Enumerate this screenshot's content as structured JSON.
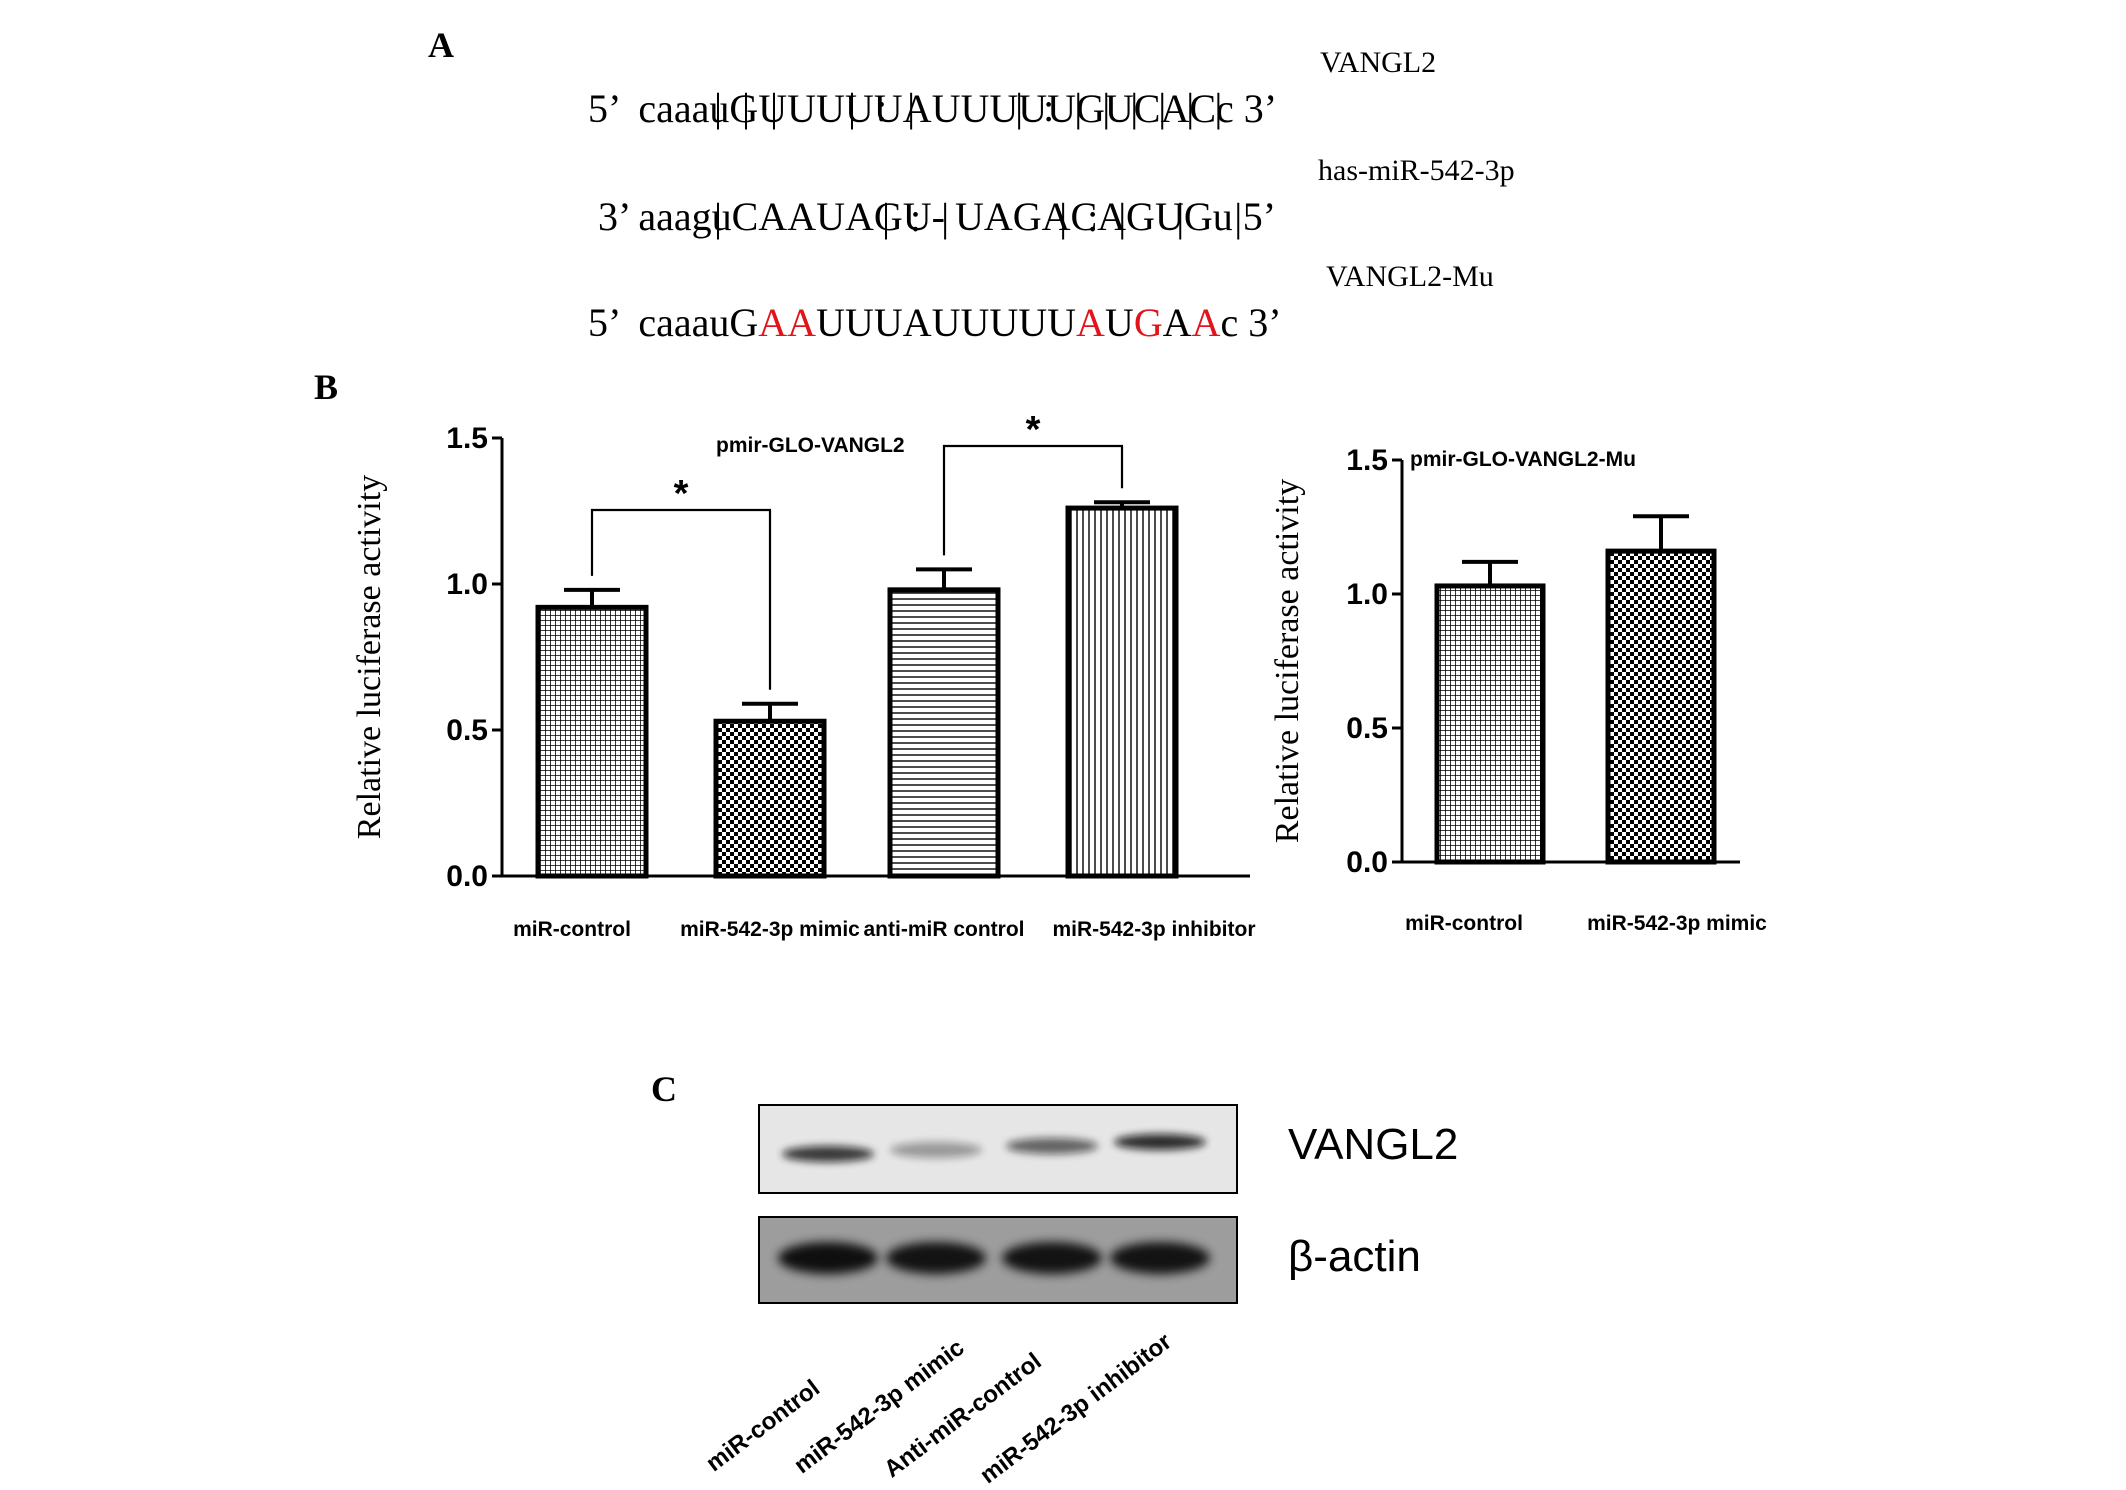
{
  "panels": {
    "a": "A",
    "b": "B",
    "c": "C"
  },
  "panel_a": {
    "row1": {
      "prefix": "5’  caaau",
      "seq": "GUUUUUAUUUUUGUCACc",
      "suffix": " 3’",
      "tag": "VANGL2"
    },
    "pairs1": "|  |  |       |  :  |          |  :  |  |  |  |  |  |",
    "row2": {
      "prefix": "3’ aaagu",
      "seq": "CAAUAGU- UAGACAGUGu",
      "suffix": " 5’",
      "tag": "has-miR-542-3p"
    },
    "pairs2": "|                |  :  |           |  :  |     |     |",
    "row3": {
      "prefix": "5’  caaau",
      "segments": [
        {
          "t": "G",
          "m": false
        },
        {
          "t": "AA",
          "m": true
        },
        {
          "t": "UUUAUUUUU",
          "m": false
        },
        {
          "t": "A",
          "m": true
        },
        {
          "t": "U",
          "m": false
        },
        {
          "t": "G",
          "m": true
        },
        {
          "t": "A",
          "m": false
        },
        {
          "t": "A",
          "m": true
        },
        {
          "t": "c",
          "m": false
        }
      ],
      "suffix": " 3’",
      "tag": "VANGL2-Mu"
    },
    "mutation_color": "#e0141a"
  },
  "chart_data": [
    {
      "type": "bar",
      "title": "pmir-GLO-VANGL2",
      "ylabel": "Relative luciferase activity",
      "ylim": [
        0,
        1.5
      ],
      "yticks": [
        "0.0",
        "0.5",
        "1.0",
        "1.5"
      ],
      "categories": [
        "miR-control",
        "miR-542-3p mimic",
        "anti-miR control",
        "miR-542-3p inhibitor"
      ],
      "values": [
        0.92,
        0.53,
        0.98,
        1.26
      ],
      "errors": [
        0.06,
        0.06,
        0.07,
        0.02
      ],
      "patterns": [
        "grid",
        "checker",
        "hlines",
        "vlines"
      ],
      "significance": [
        {
          "pair": [
            0,
            1
          ],
          "label": "*"
        },
        {
          "pair": [
            2,
            3
          ],
          "label": "*"
        }
      ]
    },
    {
      "type": "bar",
      "title": "pmir-GLO-VANGL2-Mu",
      "ylabel": "Relative luciferase activity",
      "ylim": [
        0,
        1.5
      ],
      "yticks": [
        "0.0",
        "0.5",
        "1.0",
        "1.5"
      ],
      "categories": [
        "miR-control",
        "miR-542-3p mimic"
      ],
      "values": [
        1.03,
        1.16
      ],
      "errors": [
        0.09,
        0.13
      ],
      "patterns": [
        "grid",
        "checker"
      ]
    }
  ],
  "blot": {
    "proteins": [
      "VANGL2",
      "β-actin"
    ],
    "lanes": [
      "miR-control",
      "miR-542-3p mimic",
      "Anti-miR-control",
      "miR-542-3p inhibitor"
    ],
    "vangl2_intensity": [
      0.8,
      0.35,
      0.6,
      0.85
    ],
    "actin_intensity": [
      0.9,
      0.88,
      0.88,
      0.88
    ]
  }
}
